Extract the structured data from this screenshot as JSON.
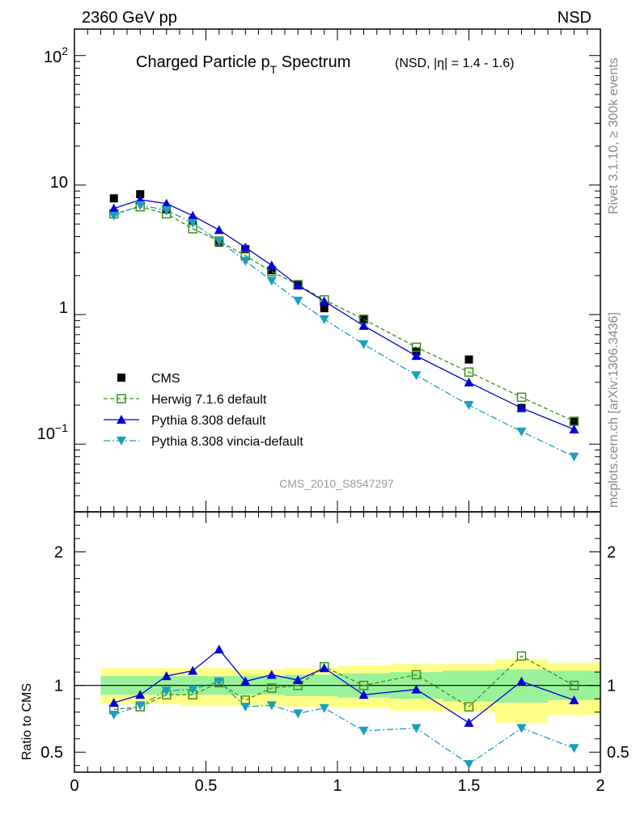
{
  "header": {
    "left": "2360 GeV pp",
    "right": "NSD"
  },
  "side_labels": {
    "top": "Rivet 3.1.10, ≥ 300k events",
    "bottom": "mcplots.cern.ch [arXiv:1306.3436]"
  },
  "colors": {
    "cms": "#000000",
    "herwig": "#3f8f1f",
    "pythia": "#0000dd",
    "vincia": "#1a9fbf",
    "band_inner": "#99f299",
    "band_outer": "#ffff88"
  },
  "chart_data": [
    {
      "type": "scatter",
      "title": "Charged Particle p",
      "title_sub": "T",
      "title_rest": " Spectrum",
      "subtitle": "(NSD, |η| = 1.4 - 1.6)",
      "watermark": "CMS_2010_S8547297",
      "xlim": [
        0,
        2
      ],
      "ylim": [
        0.03,
        160
      ],
      "log_y": true,
      "grid": false,
      "legend_position": "bottom-left",
      "y_tick_labels": [
        "10⁻¹",
        "1",
        "10",
        "10²"
      ],
      "x": [
        0.15,
        0.25,
        0.35,
        0.45,
        0.55,
        0.65,
        0.75,
        0.85,
        0.95,
        1.1,
        1.3,
        1.5,
        1.7,
        1.9
      ],
      "series": [
        {
          "name": "CMS",
          "key": "cms",
          "marker": "square-filled",
          "line": "none",
          "values": [
            7.9,
            8.5,
            6.5,
            5.3,
            3.6,
            3.2,
            2.2,
            1.72,
            1.12,
            0.93,
            0.52,
            0.45,
            0.19,
            0.15
          ]
        },
        {
          "name": "Herwig 7.1.6 default",
          "key": "herwig",
          "marker": "square-open",
          "line": "dashed",
          "values": [
            6.0,
            6.8,
            6.0,
            4.6,
            3.7,
            2.85,
            2.15,
            1.7,
            1.3,
            0.92,
            0.56,
            0.36,
            0.23,
            0.15
          ]
        },
        {
          "name": "Pythia 8.308 default",
          "key": "pythia",
          "marker": "triangle-up",
          "line": "solid",
          "values": [
            6.6,
            7.7,
            7.2,
            5.8,
            4.5,
            3.3,
            2.4,
            1.68,
            1.27,
            0.82,
            0.48,
            0.3,
            0.19,
            0.13
          ]
        },
        {
          "name": "Pythia 8.308 vincia-default",
          "key": "vincia",
          "marker": "triangle-down",
          "line": "dashdot",
          "values": [
            5.8,
            7.0,
            6.4,
            5.1,
            3.7,
            2.6,
            1.82,
            1.28,
            0.92,
            0.59,
            0.34,
            0.2,
            0.125,
            0.08
          ]
        }
      ]
    },
    {
      "type": "line",
      "ylabel": "Ratio to CMS",
      "xlim": [
        0,
        2
      ],
      "ylim": [
        0.35,
        2.3
      ],
      "y_tick_labels": [
        "0.5",
        "1",
        "2"
      ],
      "x_tick_labels": [
        "0",
        "0.5",
        "1",
        "1.5",
        "2"
      ],
      "reference_line": 1,
      "band_bins": [
        0.1,
        0.2,
        0.3,
        0.4,
        0.5,
        0.6,
        0.7,
        0.8,
        0.9,
        1.0,
        1.2,
        1.4,
        1.6,
        1.8,
        2.0
      ],
      "band_outer": [
        [
          0.86,
          1.13
        ],
        [
          0.86,
          1.13
        ],
        [
          0.86,
          1.13
        ],
        [
          0.85,
          1.13
        ],
        [
          0.85,
          1.13
        ],
        [
          0.85,
          1.12
        ],
        [
          0.85,
          1.12
        ],
        [
          0.84,
          1.13
        ],
        [
          0.84,
          1.13
        ],
        [
          0.83,
          1.15
        ],
        [
          0.81,
          1.16
        ],
        [
          0.8,
          1.16
        ],
        [
          0.72,
          1.2
        ],
        [
          0.78,
          1.17
        ]
      ],
      "band_inner": [
        [
          0.93,
          1.07
        ],
        [
          0.93,
          1.07
        ],
        [
          0.93,
          1.07
        ],
        [
          0.93,
          1.07
        ],
        [
          0.93,
          1.07
        ],
        [
          0.93,
          1.07
        ],
        [
          0.93,
          1.07
        ],
        [
          0.92,
          1.08
        ],
        [
          0.92,
          1.08
        ],
        [
          0.91,
          1.09
        ],
        [
          0.9,
          1.1
        ],
        [
          0.88,
          1.11
        ],
        [
          0.87,
          1.12
        ],
        [
          0.89,
          1.11
        ]
      ],
      "x": [
        0.15,
        0.25,
        0.35,
        0.45,
        0.55,
        0.65,
        0.75,
        0.85,
        0.95,
        1.1,
        1.3,
        1.5,
        1.7,
        1.9
      ],
      "series": [
        {
          "name": "Herwig 7.1.6 default",
          "key": "herwig",
          "marker": "square-open",
          "line": "dashed",
          "values": [
            0.82,
            0.84,
            0.93,
            0.93,
            1.02,
            0.89,
            0.98,
            1.0,
            1.14,
            1.0,
            1.08,
            0.84,
            1.22,
            1.0
          ]
        },
        {
          "name": "Pythia 8.308 default",
          "key": "pythia",
          "marker": "triangle-up",
          "line": "solid",
          "values": [
            0.87,
            0.93,
            1.07,
            1.11,
            1.27,
            1.03,
            1.08,
            1.04,
            1.13,
            0.93,
            0.97,
            0.72,
            1.03,
            0.89
          ]
        },
        {
          "name": "Pythia 8.308 vincia-default",
          "key": "vincia",
          "marker": "triangle-down",
          "line": "dashdot",
          "values": [
            0.78,
            0.85,
            0.96,
            0.97,
            1.03,
            0.84,
            0.85,
            0.79,
            0.83,
            0.66,
            0.68,
            0.41,
            0.68,
            0.53
          ]
        }
      ]
    }
  ]
}
